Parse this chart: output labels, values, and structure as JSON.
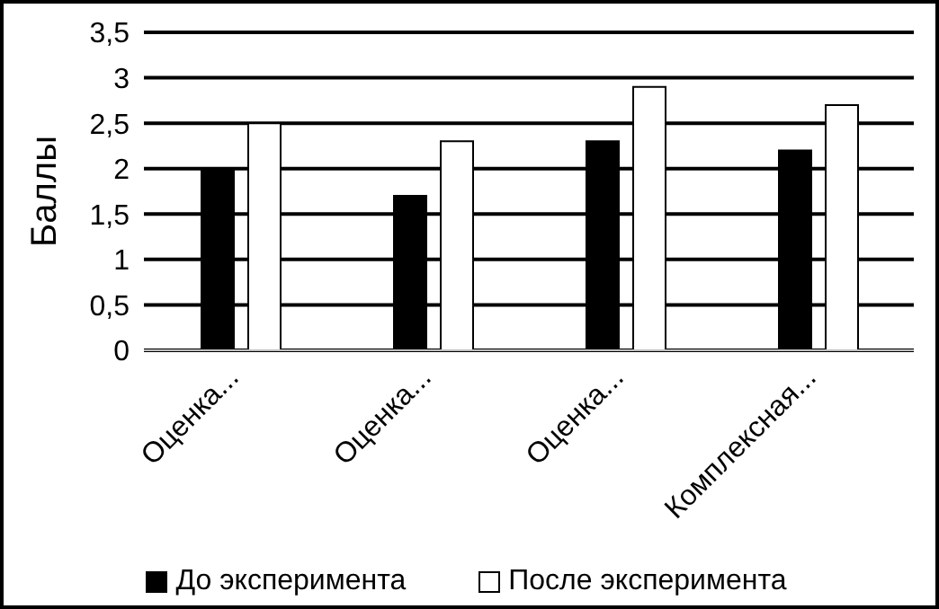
{
  "chart_data": {
    "type": "bar",
    "ylabel": "Баллы",
    "categories": [
      "Оценка...",
      "Оценка...",
      "Оценка...",
      "Комплексная..."
    ],
    "series": [
      {
        "name": "До эксперимента",
        "color": "#000000",
        "values": [
          2,
          1.7,
          2.3,
          2.2
        ]
      },
      {
        "name": "После эксперимента",
        "color": "#ffffff",
        "values": [
          2.5,
          2.3,
          2.9,
          2.7
        ]
      }
    ],
    "ylim": [
      0,
      3.5
    ],
    "yticks": [
      0,
      {
        "value": 0.5,
        "label": "0,5"
      },
      1,
      {
        "value": 1.5,
        "label": "1,5"
      },
      2,
      {
        "value": 2.5,
        "label": "2,5"
      },
      3,
      {
        "value": 3.5,
        "label": "3,5"
      }
    ],
    "grid": "y",
    "legend": "bottom"
  }
}
